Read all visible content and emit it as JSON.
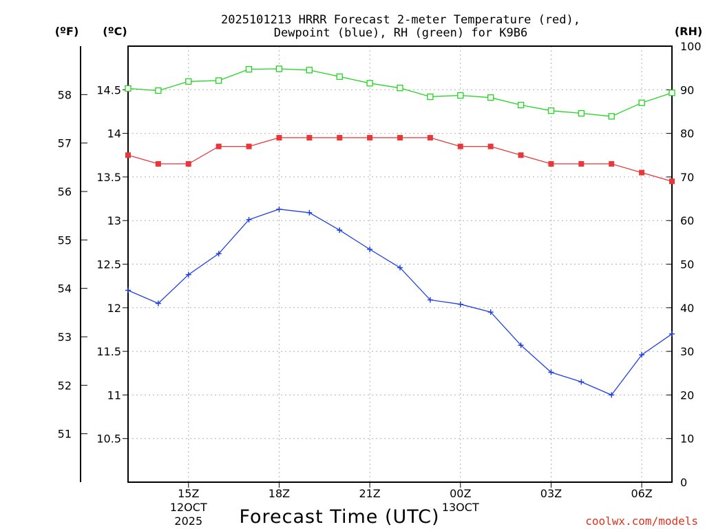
{
  "chart_data": {
    "type": "line",
    "title_line1": "2025101213 HRRR Forecast 2-meter Temperature (red),",
    "title_line2": "Dewpoint (blue), RH (green) for K9B6",
    "unit_f": "(ºF)",
    "unit_c": "(ºC)",
    "unit_rh": "(RH)",
    "xlabel": "Forecast Time (UTC)",
    "credit": "coolwx.com/models",
    "hours": [
      13,
      14,
      15,
      16,
      17,
      18,
      19,
      20,
      21,
      22,
      23,
      24,
      25,
      26,
      27,
      28,
      29,
      30,
      31
    ],
    "x_ticks": [
      {
        "hour": 15,
        "label": "15Z",
        "sub1": "12OCT",
        "sub2": "2025"
      },
      {
        "hour": 18,
        "label": "18Z",
        "sub1": "",
        "sub2": ""
      },
      {
        "hour": 21,
        "label": "21Z",
        "sub1": "",
        "sub2": ""
      },
      {
        "hour": 24,
        "label": "00Z",
        "sub1": "13OCT",
        "sub2": ""
      },
      {
        "hour": 27,
        "label": "03Z",
        "sub1": "",
        "sub2": ""
      },
      {
        "hour": 30,
        "label": "06Z",
        "sub1": "",
        "sub2": ""
      }
    ],
    "celsius_axis": {
      "range": [
        10.0,
        15.0
      ],
      "ticks": [
        "10.5",
        "11",
        "11.5",
        "12",
        "12.5",
        "13",
        "13.5",
        "14",
        "14.5"
      ]
    },
    "fahrenheit_axis": {
      "ticks": [
        "51",
        "52",
        "53",
        "54",
        "55",
        "56",
        "57",
        "58"
      ]
    },
    "rh_axis": {
      "range": [
        0,
        100
      ],
      "ticks": [
        "0",
        "10",
        "20",
        "30",
        "40",
        "50",
        "60",
        "70",
        "80",
        "90",
        "100"
      ]
    },
    "series": [
      {
        "name": "Temperature",
        "axis": "celsius",
        "color": "#e8363a",
        "marker": "filled-square",
        "values": [
          13.75,
          13.65,
          13.65,
          13.85,
          13.85,
          13.95,
          13.95,
          13.95,
          13.95,
          13.95,
          13.95,
          13.85,
          13.85,
          13.75,
          13.65,
          13.65,
          13.65,
          13.55,
          13.45
        ]
      },
      {
        "name": "Dewpoint",
        "axis": "celsius",
        "color": "#2040e0",
        "marker": "plus",
        "values": [
          12.2,
          12.05,
          12.38,
          12.62,
          13.01,
          13.13,
          13.09,
          12.89,
          12.67,
          12.46,
          12.09,
          12.04,
          11.95,
          11.57,
          11.26,
          11.15,
          11.0,
          11.46,
          11.7
        ]
      },
      {
        "name": "RH",
        "axis": "rh",
        "color": "#1fd61f",
        "marker": "open-square",
        "values": [
          90.3,
          89.8,
          91.9,
          92.1,
          94.7,
          94.8,
          94.5,
          93.0,
          91.5,
          90.4,
          88.4,
          88.7,
          88.2,
          86.5,
          85.2,
          84.6,
          83.9,
          87.0,
          89.3
        ]
      }
    ]
  }
}
